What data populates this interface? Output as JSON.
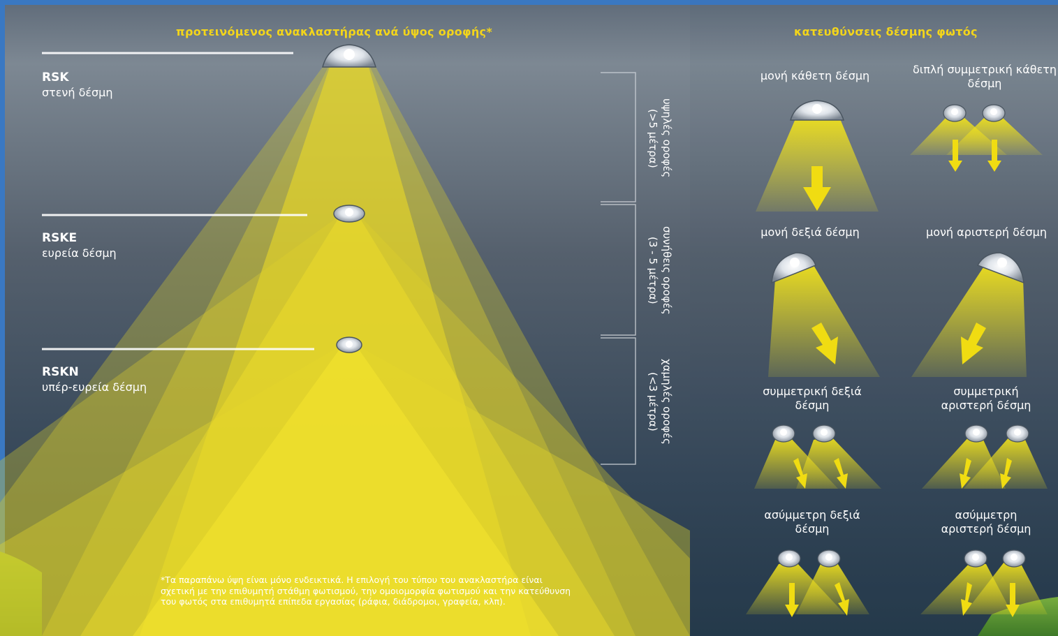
{
  "left_panel": {
    "title": "προτεινόμενος ανακλαστήρας ανά ύψος οροφής*",
    "reflectors": [
      {
        "code": "RSK",
        "beam": "στενή δέσμη"
      },
      {
        "code": "RSKE",
        "beam": "ευρεία δέσμη"
      },
      {
        "code": "RSKN",
        "beam": "υπέρ-ευρεία δέσμη"
      }
    ],
    "ceiling_ranges": [
      {
        "label": "υψηλές οροφές",
        "range": "(>5 μέτρα)"
      },
      {
        "label": "συνήθεις οροφές",
        "range": "(3 - 5 μέτρα)"
      },
      {
        "label": "χαμηλές οροφές",
        "range": "(<3 μέτρα)"
      }
    ],
    "footnote": "*Τα παραπάνω ύψη είναι μόνο ενδεικτικά. Η επιλογή του τύπου του ανακλαστήρα είναι σχετική με την επιθυμητή στάθμη φωτισμού, την ομοιομορφία φωτισμού και την κατεύθυνση του φωτός στα επιθυμητά επίπεδα εργασίας (ράφια, διάδρομοι, γραφεία, κλπ)."
  },
  "right_panel": {
    "title": "κατευθύνσεις δέσμης φωτός",
    "directions": [
      {
        "label": "μονή κάθετη δέσμη"
      },
      {
        "label": "διπλή συμμετρική κάθετη δέσμη"
      },
      {
        "label": "μονή δεξιά δέσμη"
      },
      {
        "label": "μονή αριστερή δέσμη"
      },
      {
        "label": "συμμετρική δεξιά δέσμη"
      },
      {
        "label": "συμμετρική αριστερή δέσμη"
      },
      {
        "label": "ασύμμετρη δεξιά δέσμη"
      },
      {
        "label": "ασύμμετρη αριστερή δέσμη"
      }
    ]
  },
  "colors": {
    "beam_yellow": "#f2e21c",
    "title_yellow": "#f3d51a",
    "sky_dark": "#2c4256",
    "sky_light": "#8a94a0"
  }
}
